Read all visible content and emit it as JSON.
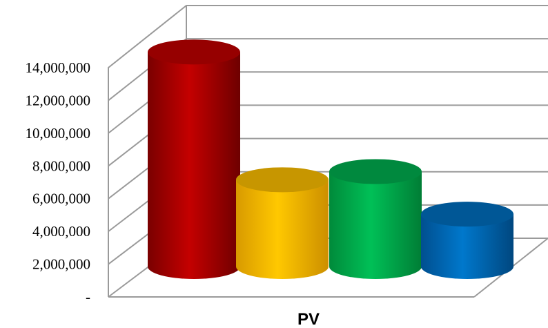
{
  "chart_data": {
    "type": "bar",
    "categories": [
      "PV"
    ],
    "series": [
      {
        "values": [
          13100000
        ],
        "color": "#c00000"
      },
      {
        "values": [
          5300000
        ],
        "color": "#ffc000"
      },
      {
        "values": [
          5800000
        ],
        "color": "#00b050"
      },
      {
        "values": [
          3200000
        ],
        "color": "#0070c0"
      }
    ],
    "ylim": [
      0,
      14000000
    ],
    "yticks": [
      "-",
      "2,000,000",
      "4,000,000",
      "6,000,000",
      "8,000,000",
      "10,000,000",
      "12,000,000",
      "14,000,000"
    ],
    "ytick_values": [
      0,
      2000000,
      4000000,
      6000000,
      8000000,
      10000000,
      12000000,
      14000000
    ],
    "xlabel": "PV",
    "grid": true,
    "style": "3d-cylinder"
  }
}
